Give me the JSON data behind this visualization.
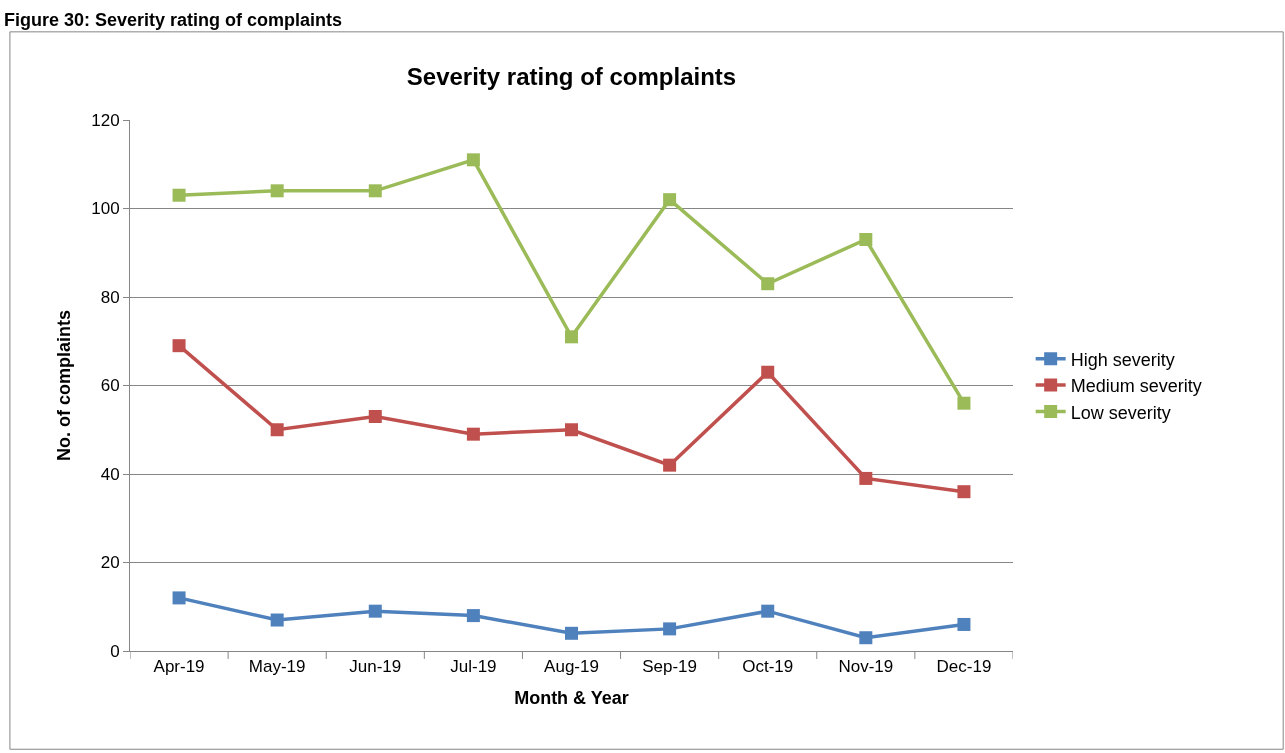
{
  "chart_data": {
    "type": "line",
    "title": "Severity rating of complaints",
    "annotations": [
      "Figure 30: Severity rating of complaints"
    ],
    "xlabel": "Month & Year",
    "ylabel": "No. of complaints",
    "categories": [
      "Apr-19",
      "May-19",
      "Jun-19",
      "Jul-19",
      "Aug-19",
      "Sep-19",
      "Oct-19",
      "Nov-19",
      "Dec-19"
    ],
    "series": [
      {
        "name": "High severity",
        "color": "#4f81bd",
        "values": [
          12,
          7,
          9,
          8,
          4,
          5,
          9,
          3,
          6
        ]
      },
      {
        "name": "Medium severity",
        "color": "#c0504d",
        "values": [
          69,
          50,
          53,
          49,
          50,
          42,
          63,
          39,
          36
        ]
      },
      {
        "name": "Low severity",
        "color": "#9bbb59",
        "values": [
          103,
          104,
          104,
          111,
          71,
          102,
          83,
          93,
          56
        ]
      }
    ],
    "ylim": [
      0,
      120
    ],
    "yticks": [
      0,
      20,
      40,
      60,
      80,
      100,
      120
    ],
    "grid": "y",
    "legend": "right",
    "marker": "square",
    "line_style": "solid"
  }
}
